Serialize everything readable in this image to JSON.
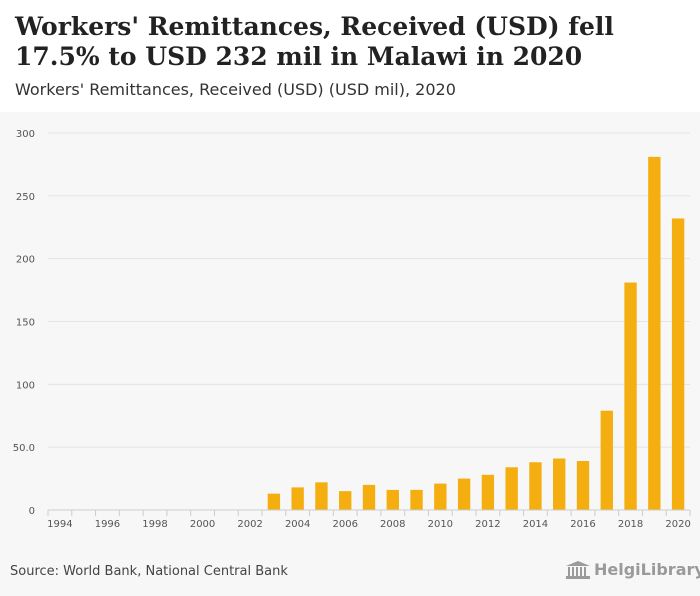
{
  "header": {
    "title": "Workers' Remittances, Received (USD) fell 17.5% to USD 232 mil in Malawi in 2020",
    "subtitle": "Workers' Remittances, Received (USD) (USD mil), 2020"
  },
  "footer": {
    "source": "Source: World Bank, National Central Bank",
    "logo_text": "HelgiLibrary"
  },
  "colors": {
    "bar": "#f5ae10",
    "grid": "#e4e4e4",
    "axis_text": "#555555",
    "background": "#f7f7f7"
  },
  "chart_data": {
    "type": "bar",
    "x": [
      1994,
      1995,
      1996,
      1997,
      1998,
      1999,
      2000,
      2001,
      2002,
      2003,
      2004,
      2005,
      2006,
      2007,
      2008,
      2009,
      2010,
      2011,
      2012,
      2013,
      2014,
      2015,
      2016,
      2017,
      2018,
      2019,
      2020
    ],
    "values": [
      null,
      null,
      null,
      null,
      null,
      null,
      null,
      null,
      null,
      13,
      18,
      22,
      15,
      20,
      16,
      16,
      21,
      25,
      28,
      34,
      38,
      41,
      39,
      79,
      181,
      281,
      232
    ],
    "x_tick_labels": [
      "1994",
      "1996",
      "1998",
      "2000",
      "2002",
      "2004",
      "2006",
      "2008",
      "2010",
      "2012",
      "2014",
      "2016",
      "2018",
      "2020"
    ],
    "y_tick_labels": [
      "0",
      "50.0",
      "100",
      "150",
      "200",
      "250",
      "300"
    ],
    "y_ticks": [
      0,
      50,
      100,
      150,
      200,
      250,
      300
    ],
    "ylim": [
      0,
      300
    ],
    "xlabel": "",
    "ylabel": "",
    "grid": true
  }
}
